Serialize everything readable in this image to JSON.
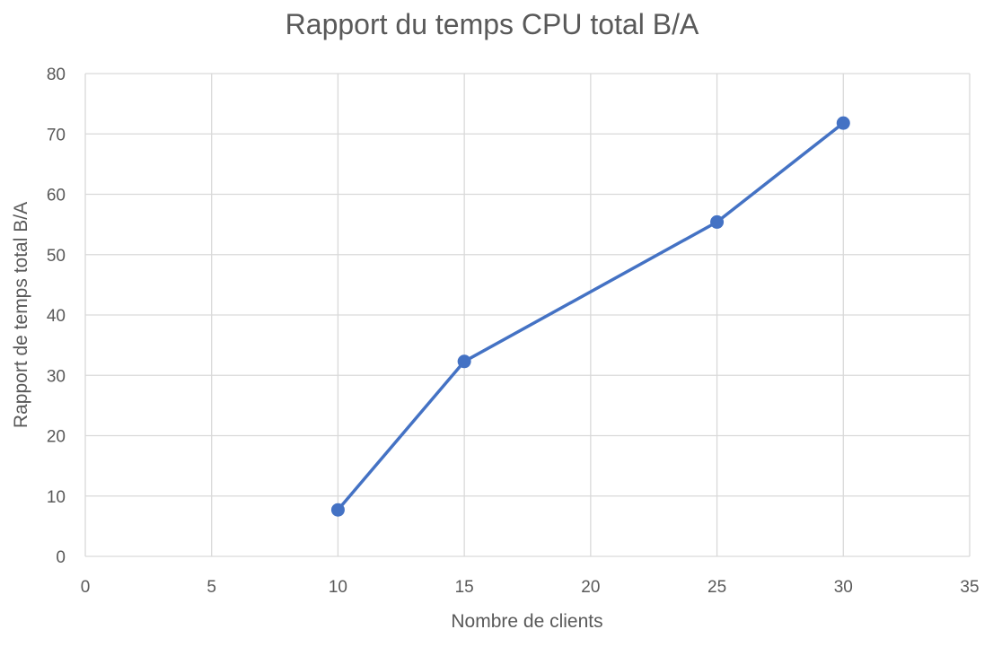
{
  "chart_data": {
    "type": "scatter",
    "title": "Rapport du temps CPU total B/A",
    "xlabel": "Nombre de clients",
    "ylabel": "Rapport de temps total B/A",
    "xlim": [
      0,
      35
    ],
    "ylim": [
      0,
      80
    ],
    "xticks": [
      0,
      5,
      10,
      15,
      20,
      25,
      30,
      35
    ],
    "yticks": [
      0,
      10,
      20,
      30,
      40,
      50,
      60,
      70,
      80
    ],
    "grid": true,
    "legend": "none",
    "series": [
      {
        "x": [
          10,
          15,
          25,
          30
        ],
        "y": [
          7.7,
          32.3,
          55.4,
          71.8
        ],
        "color": "#4472c4",
        "style": "line-with-markers"
      }
    ]
  }
}
